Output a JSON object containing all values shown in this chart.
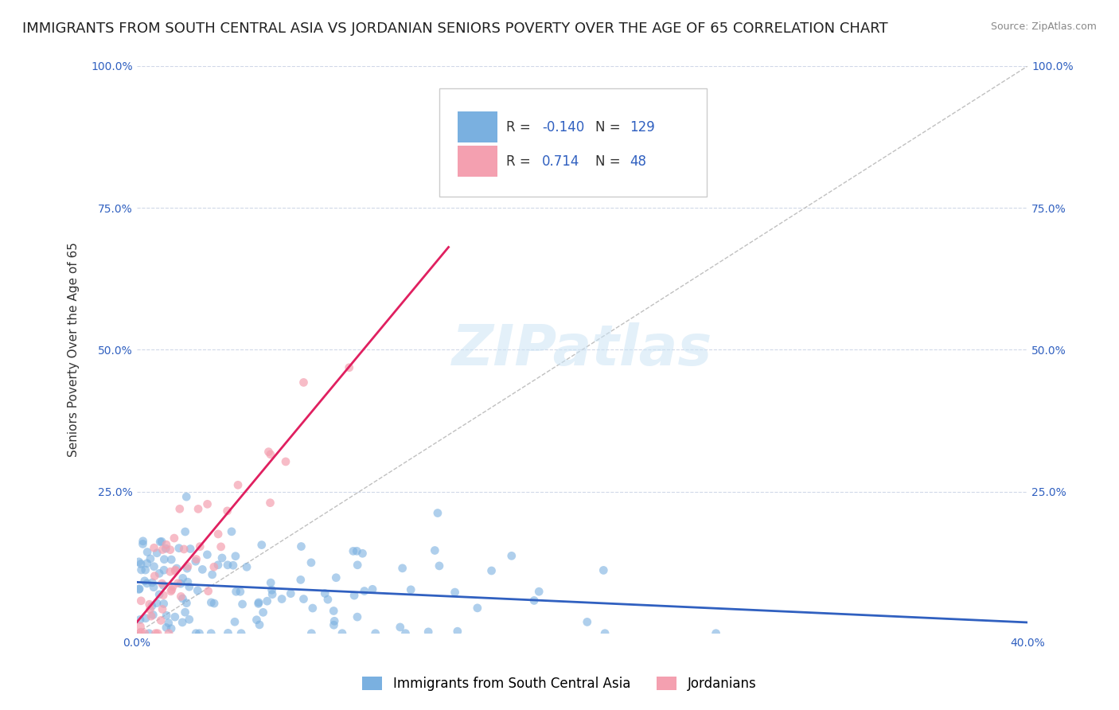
{
  "title": "IMMIGRANTS FROM SOUTH CENTRAL ASIA VS JORDANIAN SENIORS POVERTY OVER THE AGE OF 65 CORRELATION CHART",
  "source": "Source: ZipAtlas.com",
  "xlabel": "",
  "ylabel": "Seniors Poverty Over the Age of 65",
  "xlim": [
    0.0,
    0.4
  ],
  "ylim": [
    0.0,
    1.0
  ],
  "xticks": [
    0.0,
    0.05,
    0.1,
    0.15,
    0.2,
    0.25,
    0.3,
    0.35,
    0.4
  ],
  "xtick_labels": [
    "0.0%",
    "",
    "",
    "",
    "",
    "",
    "",
    "",
    "40.0%"
  ],
  "yticks": [
    0.0,
    0.25,
    0.5,
    0.75,
    1.0
  ],
  "ytick_labels": [
    "",
    "25.0%",
    "50.0%",
    "75.0%",
    "100.0%"
  ],
  "blue_color": "#7ab0e0",
  "pink_color": "#f4a0b0",
  "blue_line_color": "#3060c0",
  "pink_line_color": "#e02060",
  "diag_line_color": "#c0c0c0",
  "R_blue": -0.14,
  "N_blue": 129,
  "R_pink": 0.714,
  "N_pink": 48,
  "legend_label_blue": "Immigrants from South Central Asia",
  "legend_label_pink": "Jordanians",
  "watermark": "ZIPatlas",
  "background_color": "#ffffff",
  "grid_color": "#d0d8e8",
  "title_fontsize": 13,
  "axis_label_fontsize": 11,
  "tick_fontsize": 10,
  "legend_fontsize": 12,
  "blue_scatter_seed": 42,
  "pink_scatter_seed": 7
}
